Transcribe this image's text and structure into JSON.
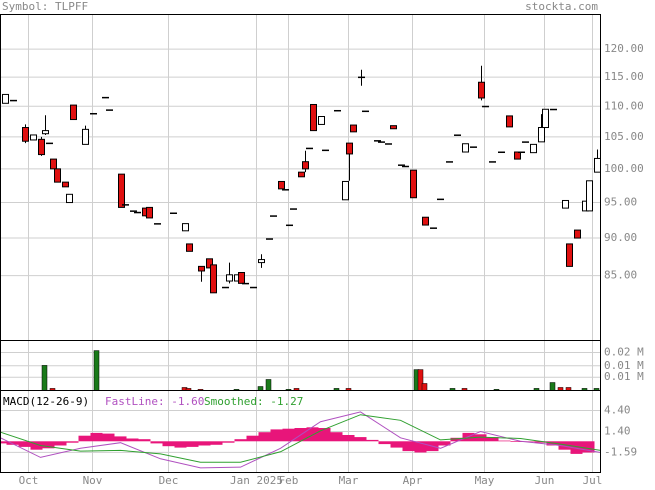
{
  "chart_data": [
    {
      "type": "candlestick",
      "title": "Symbol: TLPFF",
      "source": "stockta.com",
      "x": [
        1,
        3,
        6,
        8,
        10,
        11,
        12,
        13,
        14,
        16,
        17,
        18,
        21,
        23,
        26,
        27,
        30,
        31,
        33,
        34,
        36,
        37,
        39,
        43,
        46,
        47,
        50,
        52,
        53,
        56,
        57,
        59,
        60,
        61,
        63,
        65,
        67,
        68,
        70,
        71,
        72,
        73,
        75,
        76,
        77,
        78,
        80,
        81,
        84,
        86,
        87,
        88,
        90,
        91,
        94,
        95,
        97,
        98,
        100,
        101,
        103,
        106,
        108,
        110,
        112,
        114,
        116,
        118,
        120,
        121,
        123,
        125,
        127,
        129,
        130,
        131,
        133,
        135,
        136,
        138,
        141,
        142,
        144,
        146,
        147,
        149
      ],
      "open": [
        110.5,
        111,
        106.5,
        104.5,
        104.6,
        105.5,
        104,
        101.5,
        100,
        98,
        95,
        110.2,
        103.8,
        108.8,
        111.5,
        109.4,
        99.2,
        94.7,
        93.8,
        93.6,
        94.2,
        94.3,
        92,
        93.5,
        91,
        89.2,
        86.2,
        87.2,
        86.4,
        83.5,
        84.3,
        84.3,
        85.4,
        84,
        83.5,
        86.7,
        89.9,
        93.1,
        98.1,
        96.9,
        91.8,
        94.1,
        99.5,
        101.1,
        103.2,
        110.3,
        107,
        102.9,
        109.3,
        95.4,
        104,
        106.9,
        115,
        109.2,
        104.4,
        104.2,
        103.9,
        106.8,
        100.6,
        100.4,
        99.8,
        92.9,
        91.4,
        95.5,
        101.1,
        105.3,
        102.6,
        103.4,
        114.1,
        110,
        101.1,
        102.6,
        108.4,
        102.6,
        102.6,
        104.2,
        102.5,
        104.2,
        106.5,
        109.5,
        94.2,
        89.2,
        91.1,
        93.8,
        93.8,
        99.5
      ],
      "high": [
        112,
        111,
        107,
        105.3,
        105,
        108.5,
        104,
        101.5,
        100,
        98,
        96.2,
        110.2,
        106.8,
        108.8,
        111.5,
        109.4,
        99.2,
        94.7,
        93.8,
        93.6,
        94.2,
        94.3,
        92,
        93.5,
        92,
        89.2,
        86.2,
        87.2,
        86.4,
        83.5,
        86.7,
        85.1,
        85.4,
        84,
        83.5,
        87.8,
        89.9,
        93.1,
        98.1,
        96.9,
        91.8,
        94.1,
        99.5,
        102.8,
        103.2,
        110.3,
        108.3,
        102.9,
        109.3,
        98.1,
        104,
        106.9,
        116.3,
        109.2,
        104.4,
        104.2,
        103.9,
        106.8,
        100.6,
        100.4,
        99.8,
        92.9,
        91.4,
        95.5,
        101.1,
        105.3,
        103.9,
        103.4,
        117,
        110,
        101.1,
        102.6,
        108.4,
        102.6,
        102.6,
        104.2,
        103.8,
        108.7,
        109.5,
        109.5,
        95.3,
        89.2,
        91.1,
        95.2,
        98.2,
        103
      ],
      "low": [
        110.5,
        111,
        104,
        104.5,
        102,
        105.3,
        104,
        100,
        98,
        97.3,
        95,
        107.8,
        103.8,
        108.8,
        111.5,
        109.4,
        94.3,
        94.7,
        93.8,
        93.6,
        93,
        92.8,
        92,
        93.5,
        91,
        88.2,
        84.2,
        86,
        82.8,
        83.5,
        84,
        84.3,
        84,
        84,
        83.5,
        86,
        89.9,
        93.1,
        97,
        96.9,
        91.8,
        94.1,
        98.8,
        99.5,
        103.2,
        106,
        107,
        102.9,
        109.3,
        95.4,
        98.2,
        105.8,
        113.5,
        109.2,
        104.4,
        104.2,
        103.9,
        106.3,
        100.6,
        100.4,
        95.7,
        91.8,
        91.4,
        95.5,
        101.1,
        105.3,
        102.6,
        103.4,
        111,
        110,
        101.1,
        102.6,
        106.6,
        101.5,
        102.6,
        104.2,
        102.5,
        104.2,
        106.5,
        109.5,
        94.2,
        86.2,
        90,
        93.8,
        93.8,
        99.5
      ],
      "close": [
        112,
        111,
        104.3,
        105.3,
        102.2,
        106,
        104,
        100,
        98,
        97.3,
        96.2,
        107.8,
        106.2,
        108.8,
        111.5,
        109.4,
        94.3,
        94.7,
        93.8,
        93.6,
        93.1,
        92.8,
        92,
        93.5,
        92,
        88.2,
        85.6,
        86,
        82.8,
        83.5,
        85.1,
        85.1,
        84,
        84,
        83.5,
        87.1,
        89.9,
        93.1,
        97,
        96.9,
        91.8,
        94.1,
        98.8,
        100,
        103.2,
        106,
        108.3,
        102.9,
        109.3,
        98.1,
        102.3,
        105.8,
        115,
        109.2,
        104.4,
        104.2,
        103.9,
        106.3,
        100.6,
        100.4,
        95.7,
        91.8,
        91.4,
        95.5,
        101.1,
        105.3,
        103.9,
        103.4,
        111.4,
        110,
        101.1,
        102.6,
        106.6,
        101.5,
        102.6,
        104.2,
        103.8,
        106.5,
        109.5,
        109.5,
        95.3,
        86.2,
        90,
        95.2,
        98.2,
        101.6
      ],
      "up_color": "#ffffff",
      "down_color": "#e01010",
      "xlim": [
        0,
        150
      ],
      "xticks": [
        {
          "value": 7,
          "label": "Oct"
        },
        {
          "value": 23,
          "label": "Nov"
        },
        {
          "value": 42,
          "label": "Dec"
        },
        {
          "value": 64,
          "label": "Jan 2025"
        },
        {
          "value": 72,
          "label": "Feb"
        },
        {
          "value": 87,
          "label": "Mar"
        },
        {
          "value": 103,
          "label": "Apr"
        },
        {
          "value": 121,
          "label": "May"
        },
        {
          "value": 136,
          "label": "Jun"
        },
        {
          "value": 148,
          "label": "Jul"
        }
      ],
      "ylim": [
        77,
        126.5
      ],
      "ylog": true,
      "yticks": [
        {
          "value": 120,
          "label": "120.00"
        },
        {
          "value": 115,
          "label": "115.00"
        },
        {
          "value": 110,
          "label": "110.00"
        },
        {
          "value": 105,
          "label": "105.00"
        },
        {
          "value": 100,
          "label": "100.00"
        },
        {
          "value": 95,
          "label": "95.00"
        },
        {
          "value": 90,
          "label": "90.00"
        },
        {
          "value": 85,
          "label": "85.00"
        }
      ],
      "grid": true
    },
    {
      "type": "bar",
      "x": [
        11,
        13,
        24,
        46,
        47,
        50,
        59,
        65,
        67,
        72,
        74,
        84,
        87,
        104,
        105,
        106,
        113,
        116,
        124,
        134,
        138,
        140,
        142,
        146,
        149
      ],
      "values": [
        0.0132,
        0.0011,
        0.021,
        0.0016,
        0.0011,
        0.0006,
        0.0006,
        0.0021,
        0.0058,
        0.0006,
        0.0011,
        0.0011,
        0.0011,
        0.011,
        0.011,
        0.0037,
        0.0011,
        0.0011,
        0.0006,
        0.0011,
        0.0042,
        0.0016,
        0.0016,
        0.0011,
        0.0011
      ],
      "colors": [
        "#1a7a1a",
        "#e01010",
        "#1a7a1a",
        "#e01010",
        "#e01010",
        "#e01010",
        "#1a7a1a",
        "#1a7a1a",
        "#1a7a1a",
        "#1a7a1a",
        "#e01010",
        "#1a7a1a",
        "#e01010",
        "#1a7a1a",
        "#e01010",
        "#e01010",
        "#1a7a1a",
        "#e01010",
        "#1a7a1a",
        "#1a7a1a",
        "#1a7a1a",
        "#e01010",
        "#e01010",
        "#1a7a1a",
        "#1a7a1a"
      ],
      "xlim": [
        0,
        150
      ],
      "ylim": [
        0,
        0.0263
      ],
      "yticks": [
        {
          "value": 0.02,
          "label": "0.02 M"
        },
        {
          "value": 0.013,
          "label": "0.01 M"
        },
        {
          "value": 0.007,
          "label": "0.01 M"
        }
      ],
      "grid": true
    },
    {
      "type": "macd",
      "title": "MACD(12-26-9)",
      "fast_label": "FastLine: -1.60",
      "smooth_label": "Smoothed: -1.27",
      "hist": {
        "color": "#e8157a",
        "x": [
          0,
          3,
          6,
          9,
          12,
          15,
          18,
          21,
          24,
          27,
          30,
          33,
          36,
          39,
          42,
          45,
          48,
          51,
          54,
          57,
          60,
          63,
          66,
          69,
          72,
          75,
          78,
          81,
          84,
          87,
          90,
          93,
          96,
          99,
          102,
          105,
          108,
          111,
          114,
          117,
          120,
          123,
          126,
          129,
          132,
          135,
          138,
          141,
          144,
          147
        ],
        "values": [
          -0.3,
          -0.5,
          -0.8,
          -1.2,
          -1.0,
          -0.6,
          -0.2,
          0.8,
          1.2,
          1.1,
          0.7,
          0.4,
          0.3,
          -0.3,
          -0.7,
          -0.9,
          -0.8,
          -0.6,
          -0.5,
          -0.2,
          0.3,
          0.8,
          1.3,
          1.7,
          1.8,
          1.9,
          2.0,
          1.9,
          1.3,
          0.9,
          0.6,
          0.2,
          -0.4,
          -0.9,
          -1.4,
          -1.6,
          -1.4,
          -0.6,
          0.5,
          1.2,
          1.0,
          0.6,
          0.1,
          -0.1,
          0.0,
          -0.2,
          -0.6,
          -1.2,
          -1.8,
          -1.6
        ]
      },
      "series": [
        {
          "color": "#b050c0",
          "x": [
            0,
            10,
            20,
            30,
            40,
            50,
            60,
            70,
            80,
            90,
            100,
            110,
            120,
            130,
            140,
            150
          ],
          "values": [
            0.5,
            -2.3,
            -1.0,
            -0.2,
            -2.5,
            -3.8,
            -3.7,
            -1.0,
            2.8,
            4.2,
            0.5,
            -1.0,
            1.4,
            0.0,
            -0.6,
            -1.6
          ]
        },
        {
          "color": "#30a030",
          "x": [
            0,
            10,
            20,
            30,
            40,
            50,
            60,
            70,
            80,
            90,
            100,
            110,
            120,
            130,
            140,
            150
          ],
          "values": [
            1.3,
            -0.6,
            -1.4,
            -1.3,
            -1.8,
            -3.0,
            -3.0,
            -1.5,
            1.5,
            3.8,
            3.0,
            0.2,
            0.6,
            0.4,
            -0.4,
            -1.3
          ]
        }
      ],
      "xlim": [
        0,
        150
      ],
      "ylim": [
        -4.46,
        7.26
      ],
      "yticks": [
        {
          "value": 4.4,
          "label": "4.40"
        },
        {
          "value": 1.4,
          "label": "1.40"
        },
        -1.59
      ],
      "grid": true
    }
  ]
}
